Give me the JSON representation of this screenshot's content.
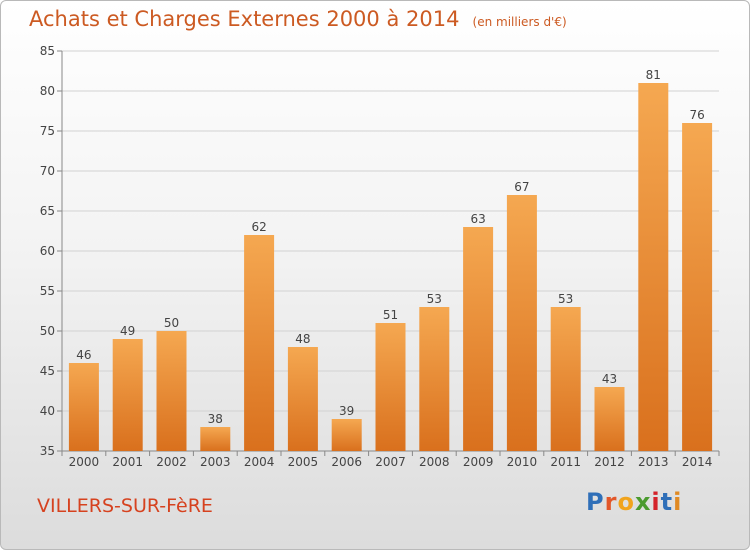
{
  "header": {
    "title": "Achats et Charges Externes 2000 à 2014",
    "unit": "(en milliers d'€)"
  },
  "footer": {
    "commune": "VILLERS-SUR-FèRE",
    "logo_text": "Proxiti"
  },
  "colors": {
    "bar_light": "#f5a851",
    "bar_dark": "#d9701d",
    "title": "#cc5a22",
    "commune": "#d6421f",
    "logo_letters": [
      "#2f6fb8",
      "#e2572a",
      "#f1a41d",
      "#4b9b2f",
      "#d4232a",
      "#2f6fb8",
      "#e08a24"
    ]
  },
  "chart_data": {
    "type": "bar",
    "title": "Achats et Charges Externes 2000 à 2014",
    "subtitle": "(en milliers d'€)",
    "xlabel": "",
    "ylabel": "",
    "categories": [
      "2000",
      "2001",
      "2002",
      "2003",
      "2004",
      "2005",
      "2006",
      "2007",
      "2008",
      "2009",
      "2010",
      "2011",
      "2012",
      "2013",
      "2014"
    ],
    "values": [
      46,
      49,
      50,
      38,
      62,
      48,
      39,
      51,
      53,
      63,
      67,
      53,
      43,
      81,
      76
    ],
    "ylim": [
      35,
      85
    ],
    "yticks": [
      35,
      40,
      45,
      50,
      55,
      60,
      65,
      70,
      75,
      80,
      85
    ],
    "grid": true,
    "legend": "none"
  }
}
